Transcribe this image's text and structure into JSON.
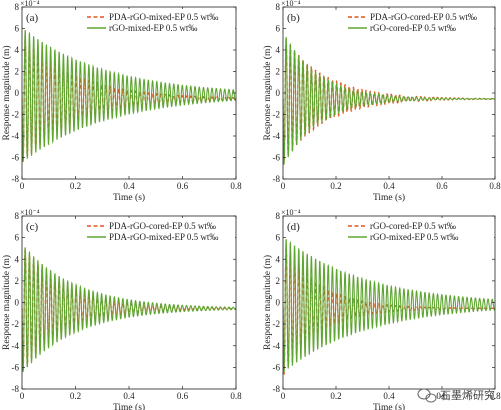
{
  "watermark": {
    "text": "石墨烯研究",
    "icon": "wechat-icon"
  },
  "chart_data": [
    {
      "panel_label": "(a)",
      "type": "line",
      "xlabel": "Time (s)",
      "ylabel": "Response magnitude (m)",
      "exponent_label": "×10⁻⁴",
      "xlim": [
        0,
        0.8
      ],
      "ylim": [
        -8,
        8
      ],
      "xticks": [
        "0",
        "0.2",
        "0.4",
        "0.6",
        "0.8"
      ],
      "yticks": [
        "-8",
        "-6",
        "-4",
        "-2",
        "0",
        "2",
        "4",
        "6",
        "8"
      ],
      "legend_position": "top-right",
      "series": [
        {
          "name": "PDA-rGO-mixed-EP 0.5 wt‰",
          "color": "#e0561b",
          "dash": "dashed",
          "model": {
            "amplitude": 6.0,
            "offset": -0.55,
            "decay": 5.0,
            "frequency": 63.0,
            "phase": 1.57
          }
        },
        {
          "name": "rGO-mixed-EP 0.5 wt‰",
          "color": "#5fa531",
          "dash": "solid",
          "model": {
            "amplitude": 6.3,
            "offset": -0.2,
            "decay": 3.2,
            "frequency": 63.0,
            "phase": 1.57
          }
        }
      ]
    },
    {
      "panel_label": "(b)",
      "type": "line",
      "xlabel": "Time (s)",
      "ylabel": "Response magnitude (m)",
      "exponent_label": "×10⁻⁴",
      "xlim": [
        0,
        0.8
      ],
      "ylim": [
        -8,
        8
      ],
      "xticks": [
        "0",
        "0.2",
        "0.4",
        "0.6",
        "0.8"
      ],
      "yticks": [
        "-8",
        "-6",
        "-4",
        "-2",
        "0",
        "2",
        "4",
        "6",
        "8"
      ],
      "legend_position": "top-right",
      "series": [
        {
          "name": "PDA-rGO-cored-EP 0.5 wt‰",
          "color": "#e0561b",
          "dash": "dashed",
          "model": {
            "amplitude": 6.0,
            "offset": -0.55,
            "decay": 6.5,
            "frequency": 63.0,
            "phase": 1.57
          }
        },
        {
          "name": "rGO-cored-EP 0.5 wt‰",
          "color": "#5fa531",
          "dash": "solid",
          "model": {
            "amplitude": 6.3,
            "offset": -0.55,
            "decay": 7.5,
            "frequency": 63.0,
            "phase": 1.57
          }
        }
      ]
    },
    {
      "panel_label": "(c)",
      "type": "line",
      "xlabel": "Time (s)",
      "ylabel": "Response magnitude (m)",
      "exponent_label": "×10⁻⁴",
      "xlim": [
        0,
        0.8
      ],
      "ylim": [
        -8,
        8
      ],
      "xticks": [
        "0",
        "0.2",
        "0.4",
        "0.6",
        "0.8"
      ],
      "yticks": [
        "-8",
        "-6",
        "-4",
        "-2",
        "0",
        "2",
        "4",
        "6",
        "8"
      ],
      "legend_position": "top-right",
      "series": [
        {
          "name": "PDA-rGO-cored-EP 0.5 wt‰",
          "color": "#e0561b",
          "dash": "dashed",
          "model": {
            "amplitude": 6.0,
            "offset": -0.55,
            "decay": 6.5,
            "frequency": 63.0,
            "phase": 1.57
          }
        },
        {
          "name": "PDA-rGO-mixed-EP 0.5 wt‰",
          "color": "#5fa531",
          "dash": "solid",
          "model": {
            "amplitude": 6.0,
            "offset": -0.55,
            "decay": 5.0,
            "frequency": 63.0,
            "phase": 1.57
          }
        }
      ]
    },
    {
      "panel_label": "(d)",
      "type": "line",
      "xlabel": "Time (s)",
      "ylabel": "Response magnitude (m)",
      "exponent_label": "×10⁻⁴",
      "xlim": [
        0,
        0.8
      ],
      "ylim": [
        -8,
        8
      ],
      "xticks": [
        "0",
        "0.2",
        "0.4",
        "0.6",
        "0.8"
      ],
      "yticks": [
        "-8",
        "-6",
        "-4",
        "-2",
        "0",
        "2",
        "4",
        "6",
        "8"
      ],
      "legend_position": "top-right",
      "series": [
        {
          "name": "rGO-cored-EP 0.5 wt‰",
          "color": "#e0561b",
          "dash": "dashed",
          "model": {
            "amplitude": 6.3,
            "offset": -0.55,
            "decay": 7.5,
            "frequency": 63.0,
            "phase": 1.57
          }
        },
        {
          "name": "rGO-mixed-EP 0.5 wt‰",
          "color": "#5fa531",
          "dash": "solid",
          "model": {
            "amplitude": 6.3,
            "offset": -0.2,
            "decay": 3.2,
            "frequency": 63.0,
            "phase": 1.57
          }
        }
      ]
    }
  ]
}
